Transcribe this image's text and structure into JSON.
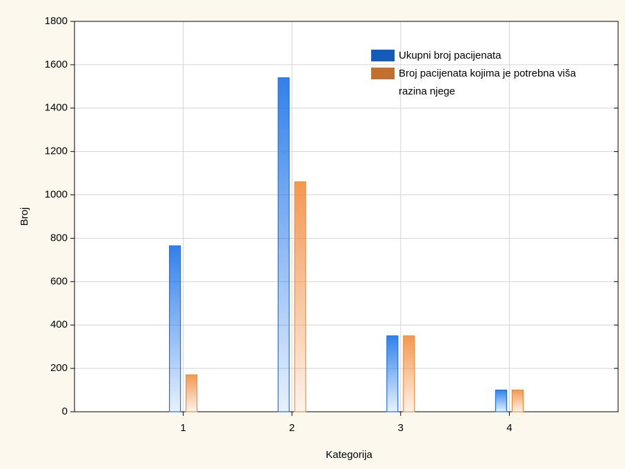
{
  "chart_data": {
    "type": "bar",
    "x": [
      1,
      2,
      3,
      4
    ],
    "xlim": [
      0,
      5
    ],
    "xticks": [
      1,
      2,
      3,
      4
    ],
    "ylim": [
      0,
      1800
    ],
    "yticks": [
      0,
      200,
      400,
      600,
      800,
      1000,
      1200,
      1400,
      1600,
      1800
    ],
    "x_label": "Kategorija",
    "y_label": "Broj",
    "grid": true,
    "legend_position": "upper right",
    "series": [
      {
        "name": "Ukupni broj pacijenata",
        "color": "#1a73e8",
        "values": [
          765,
          1540,
          350,
          100
        ]
      },
      {
        "name": "Broj pacijenata kojima je potrebna viša razina njege",
        "color": "#f28c3c",
        "values": [
          170,
          1060,
          350,
          100
        ]
      }
    ]
  }
}
